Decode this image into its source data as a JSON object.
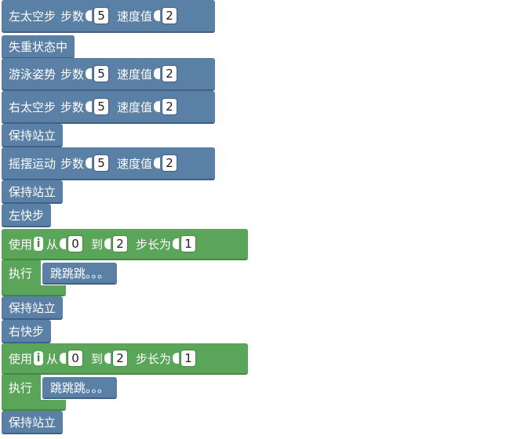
{
  "colors": {
    "motion_block": "#5b80a5",
    "control_block": "#5ba55b",
    "background": "#ffffff"
  },
  "blocks": [
    {
      "type": "move",
      "name": "左太空步",
      "steps_label": "步数",
      "steps": "5",
      "speed_label": "速度值",
      "speed": "2"
    },
    {
      "type": "simple",
      "name": "失重状态中"
    },
    {
      "type": "move",
      "name": "游泳姿势",
      "steps_label": "步数",
      "steps": "5",
      "speed_label": "速度值",
      "speed": "2"
    },
    {
      "type": "move",
      "name": "右太空步",
      "steps_label": "步数",
      "steps": "5",
      "speed_label": "速度值",
      "speed": "2"
    },
    {
      "type": "simple",
      "name": "保持站立"
    },
    {
      "type": "move",
      "name": "摇摆运动",
      "steps_label": "步数",
      "steps": "5",
      "speed_label": "速度值",
      "speed": "2"
    },
    {
      "type": "simple",
      "name": "保持站立"
    },
    {
      "type": "simple",
      "name": "左快步"
    },
    {
      "type": "loop",
      "use_label": "使用",
      "var": "i",
      "from_label": "从",
      "from": "0",
      "to_label": "到",
      "to": "2",
      "step_label": "步长为",
      "step": "1",
      "do_label": "执行",
      "inner": "跳跳跳。。。"
    },
    {
      "type": "simple",
      "name": "保持站立"
    },
    {
      "type": "simple",
      "name": "右快步"
    },
    {
      "type": "loop",
      "use_label": "使用",
      "var": "i",
      "from_label": "从",
      "from": "0",
      "to_label": "到",
      "to": "2",
      "step_label": "步长为",
      "step": "1",
      "do_label": "执行",
      "inner": "跳跳跳。。。"
    },
    {
      "type": "simple",
      "name": "保持站立"
    }
  ]
}
